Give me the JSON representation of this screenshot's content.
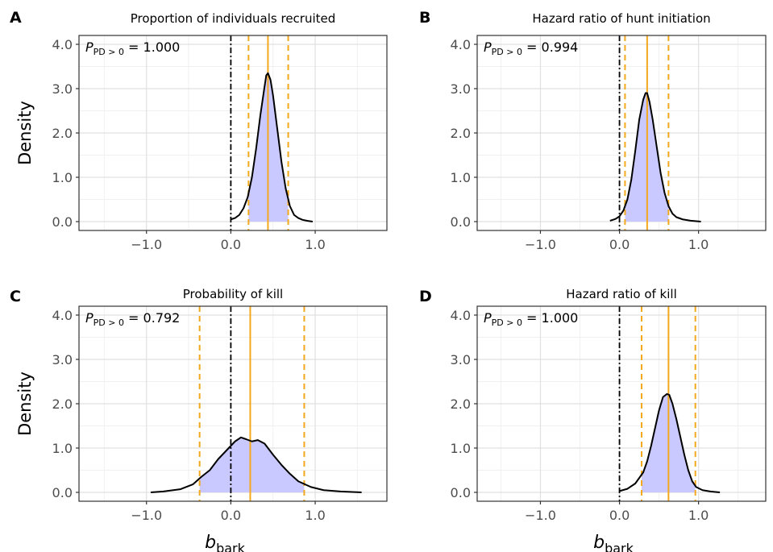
{
  "colors": {
    "panel_border": "#333333",
    "grid_major": "#e0e0e0",
    "grid_minor": "#f0f0f0",
    "fill": "#c9c9ff",
    "curve": "#000000",
    "ci_line": "#f4a81d",
    "zero_line": "#000000",
    "tick_text": "#4d4d4d"
  },
  "labels": {
    "y_axis": "Density",
    "x_axis_main": "b",
    "x_axis_sub": "bark",
    "p_main": "P",
    "p_sub": "PD > 0",
    "p_eq": " = "
  },
  "chart_data": [
    {
      "type": "area",
      "tag": "A",
      "title": "Proportion of individuals recruited",
      "p_value": "1.000",
      "xlim": [
        -1.8,
        1.85
      ],
      "ylim": [
        -0.2,
        4.2
      ],
      "xticks": [
        -1.0,
        0.0,
        1.0
      ],
      "xtick_labels": [
        "−1.0",
        "0.0",
        "1.0"
      ],
      "yticks": [
        0.0,
        1.0,
        2.0,
        3.0,
        4.0
      ],
      "ytick_labels": [
        "0.0",
        "1.0",
        "2.0",
        "3.0",
        "4.0"
      ],
      "show_y_label": true,
      "show_x_label": false,
      "grid": true,
      "median": 0.44,
      "ci": [
        0.21,
        0.68
      ],
      "zero_line": 0,
      "curve": {
        "x": [
          0.0,
          0.05,
          0.1,
          0.15,
          0.2,
          0.25,
          0.3,
          0.35,
          0.4,
          0.42,
          0.44,
          0.47,
          0.5,
          0.55,
          0.6,
          0.65,
          0.7,
          0.75,
          0.8,
          0.85,
          0.9,
          0.97
        ],
        "y": [
          0.05,
          0.08,
          0.15,
          0.3,
          0.55,
          1.0,
          1.65,
          2.4,
          3.05,
          3.3,
          3.35,
          3.2,
          2.85,
          2.1,
          1.35,
          0.75,
          0.35,
          0.15,
          0.08,
          0.04,
          0.02,
          0.0
        ]
      }
    },
    {
      "type": "area",
      "tag": "B",
      "title": "Hazard ratio of hunt initiation",
      "p_value": "0.994",
      "xlim": [
        -1.8,
        1.85
      ],
      "ylim": [
        -0.2,
        4.2
      ],
      "xticks": [
        -1.0,
        0.0,
        1.0
      ],
      "xtick_labels": [
        "−1.0",
        "0.0",
        "1.0"
      ],
      "yticks": [
        0.0,
        1.0,
        2.0,
        3.0,
        4.0
      ],
      "ytick_labels": [
        "0.0",
        "1.0",
        "2.0",
        "3.0",
        "4.0"
      ],
      "show_y_label": false,
      "show_x_label": false,
      "grid": true,
      "median": 0.35,
      "ci": [
        0.07,
        0.62
      ],
      "zero_line": 0,
      "curve": {
        "x": [
          -0.12,
          -0.05,
          0.0,
          0.05,
          0.1,
          0.15,
          0.2,
          0.25,
          0.3,
          0.33,
          0.35,
          0.38,
          0.42,
          0.47,
          0.52,
          0.57,
          0.62,
          0.67,
          0.72,
          0.8,
          0.9,
          1.03
        ],
        "y": [
          0.02,
          0.06,
          0.12,
          0.25,
          0.5,
          0.95,
          1.6,
          2.3,
          2.75,
          2.9,
          2.9,
          2.7,
          2.3,
          1.7,
          1.1,
          0.65,
          0.35,
          0.18,
          0.1,
          0.05,
          0.02,
          0.0
        ]
      }
    },
    {
      "type": "area",
      "tag": "C",
      "title": "Probability of kill",
      "p_value": "0.792",
      "xlim": [
        -1.8,
        1.85
      ],
      "ylim": [
        -0.2,
        4.2
      ],
      "xticks": [
        -1.0,
        0.0,
        1.0
      ],
      "xtick_labels": [
        "−1.0",
        "0.0",
        "1.0"
      ],
      "yticks": [
        0.0,
        1.0,
        2.0,
        3.0,
        4.0
      ],
      "ytick_labels": [
        "0.0",
        "1.0",
        "2.0",
        "3.0",
        "4.0"
      ],
      "show_y_label": true,
      "show_x_label": true,
      "grid": true,
      "median": 0.23,
      "ci": [
        -0.37,
        0.87
      ],
      "zero_line": 0,
      "curve": {
        "x": [
          -0.95,
          -0.8,
          -0.6,
          -0.45,
          -0.35,
          -0.25,
          -0.15,
          -0.05,
          0.05,
          0.12,
          0.18,
          0.25,
          0.32,
          0.4,
          0.5,
          0.6,
          0.7,
          0.8,
          0.95,
          1.1,
          1.3,
          1.55
        ],
        "y": [
          0.0,
          0.02,
          0.07,
          0.18,
          0.35,
          0.5,
          0.75,
          0.95,
          1.15,
          1.24,
          1.2,
          1.15,
          1.18,
          1.1,
          0.85,
          0.62,
          0.42,
          0.25,
          0.12,
          0.05,
          0.02,
          0.0
        ]
      }
    },
    {
      "type": "area",
      "tag": "D",
      "title": "Hazard ratio of kill",
      "p_value": "1.000",
      "xlim": [
        -1.8,
        1.85
      ],
      "ylim": [
        -0.2,
        4.2
      ],
      "xticks": [
        -1.0,
        0.0,
        1.0
      ],
      "xtick_labels": [
        "−1.0",
        "0.0",
        "1.0"
      ],
      "yticks": [
        0.0,
        1.0,
        2.0,
        3.0,
        4.0
      ],
      "ytick_labels": [
        "0.0",
        "1.0",
        "2.0",
        "3.0",
        "4.0"
      ],
      "show_y_label": false,
      "show_x_label": true,
      "grid": true,
      "median": 0.62,
      "ci": [
        0.28,
        0.96
      ],
      "zero_line": 0,
      "curve": {
        "x": [
          0.0,
          0.1,
          0.2,
          0.3,
          0.35,
          0.4,
          0.45,
          0.5,
          0.55,
          0.6,
          0.63,
          0.67,
          0.72,
          0.77,
          0.82,
          0.87,
          0.92,
          0.97,
          1.05,
          1.15,
          1.27
        ],
        "y": [
          0.03,
          0.08,
          0.2,
          0.45,
          0.7,
          1.05,
          1.45,
          1.85,
          2.15,
          2.22,
          2.2,
          2.0,
          1.65,
          1.25,
          0.85,
          0.5,
          0.25,
          0.12,
          0.05,
          0.02,
          0.0
        ]
      }
    }
  ]
}
